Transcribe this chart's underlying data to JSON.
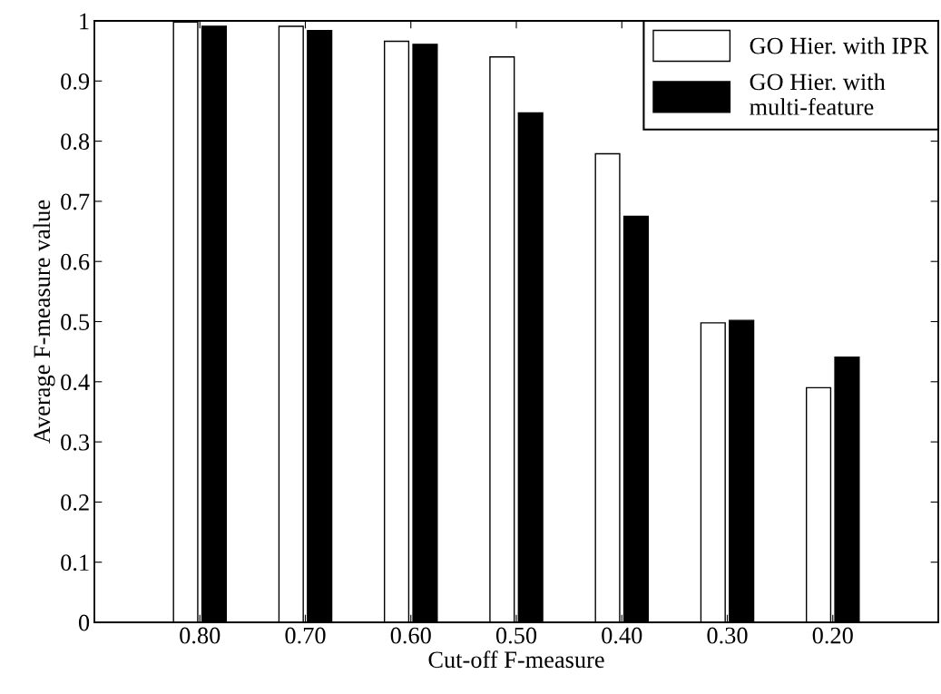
{
  "chart_data": {
    "type": "bar",
    "xlabel": "Cut-off F-measure",
    "ylabel": "Average F-measure value",
    "categories": [
      "0.80",
      "0.70",
      "0.60",
      "0.50",
      "0.40",
      "0.30",
      "0.20"
    ],
    "series": [
      {
        "name": "GO Hier. with IPR",
        "color": "#ffffff",
        "values": [
          0.998,
          0.991,
          0.966,
          0.94,
          0.779,
          0.498,
          0.39
        ]
      },
      {
        "name": "GO Hier. with\nmulti-feature",
        "color": "#000000",
        "values": [
          0.991,
          0.984,
          0.961,
          0.847,
          0.675,
          0.502,
          0.441
        ]
      }
    ],
    "ylim": [
      0,
      1
    ],
    "yticks": [
      0,
      0.1,
      0.2,
      0.3,
      0.4,
      0.5,
      0.6,
      0.7,
      0.8,
      0.9,
      1
    ],
    "grid": false,
    "legend": "top right"
  }
}
